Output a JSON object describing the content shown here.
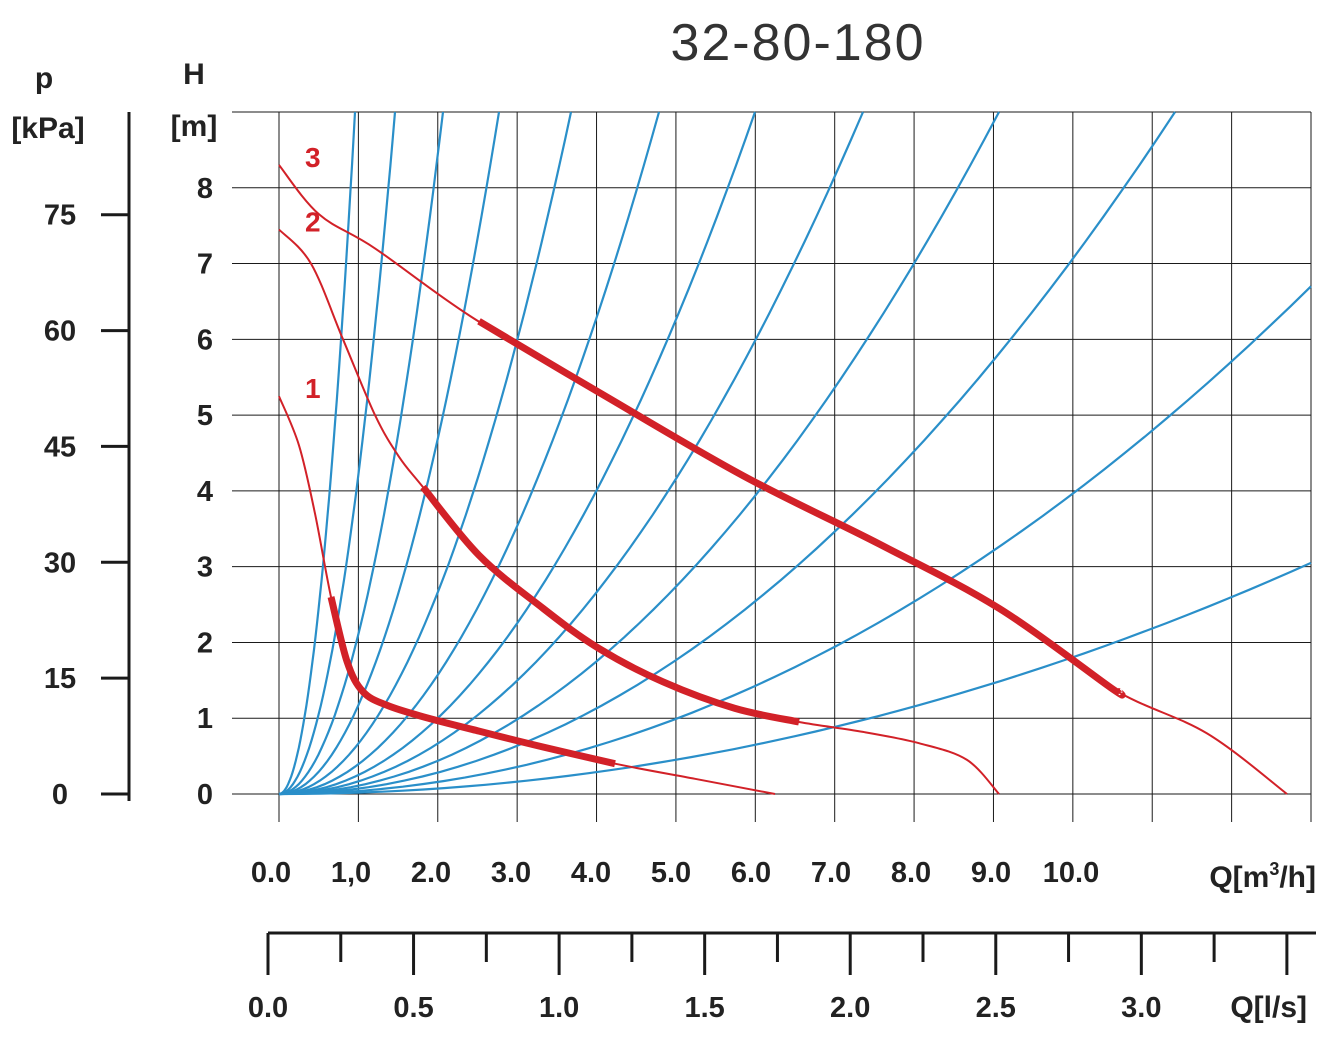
{
  "chart_data": {
    "type": "line",
    "title": "32-80-180",
    "colors": {
      "system_curves": "#2a8fc9",
      "pump_curves": "#d22128",
      "grid": "#1a1a1a",
      "text": "#222222"
    },
    "h_axis": {
      "label_top": "H",
      "label_unit": "[m]",
      "range": [
        0,
        9
      ],
      "ticks": [
        "0",
        "1",
        "2",
        "3",
        "4",
        "5",
        "6",
        "7",
        "8"
      ]
    },
    "p_axis": {
      "label_top": "p",
      "label_unit": "[kPa]",
      "range": [
        0,
        88.3
      ],
      "ticks": [
        "0",
        "15",
        "30",
        "45",
        "60",
        "75"
      ]
    },
    "q_axis": {
      "label": "Q[m³/h]",
      "label_main": "Q[m",
      "label_sup": "3",
      "label_end": "/h]",
      "range": [
        0,
        12.9
      ],
      "ticks": [
        "0.0",
        "1,0",
        "2.0",
        "3.0",
        "4.0",
        "5.0",
        "6.0",
        "7.0",
        "8.0",
        "9.0",
        "10.0"
      ]
    },
    "ql_axis": {
      "label": "Q[l/s]",
      "range": [
        0,
        3.6
      ],
      "ticks": [
        "0.0",
        "0.5",
        "1.0",
        "1.5",
        "2.0",
        "2.5",
        "3.0"
      ]
    },
    "series": [
      {
        "name": "1",
        "points": [
          [
            0,
            5.25
          ],
          [
            0.25,
            4.6
          ],
          [
            0.45,
            3.7
          ],
          [
            0.65,
            2.6
          ],
          [
            0.85,
            1.75
          ],
          [
            1.05,
            1.35
          ],
          [
            1.35,
            1.17
          ],
          [
            1.8,
            1.02
          ],
          [
            2.5,
            0.83
          ],
          [
            3.3,
            0.62
          ],
          [
            4.2,
            0.4
          ],
          [
            5.2,
            0.2
          ],
          [
            6.2,
            0
          ]
        ],
        "operating_range": [
          0.65,
          4.2
        ]
      },
      {
        "name": "2",
        "points": [
          [
            0,
            7.45
          ],
          [
            0.4,
            7.0
          ],
          [
            0.8,
            6.0
          ],
          [
            1.2,
            5.0
          ],
          [
            1.5,
            4.45
          ],
          [
            1.8,
            4.05
          ],
          [
            2.5,
            3.15
          ],
          [
            3.3,
            2.45
          ],
          [
            4.0,
            1.92
          ],
          [
            4.8,
            1.48
          ],
          [
            5.7,
            1.13
          ],
          [
            6.5,
            0.95
          ],
          [
            7.3,
            0.82
          ],
          [
            8.0,
            0.67
          ],
          [
            8.6,
            0.45
          ],
          [
            9.0,
            0
          ]
        ],
        "operating_range": [
          1.8,
          6.5
        ]
      },
      {
        "name": "3",
        "points": [
          [
            0,
            8.3
          ],
          [
            0.5,
            7.65
          ],
          [
            1.2,
            7.2
          ],
          [
            2.4,
            6.3
          ],
          [
            4.0,
            5.3
          ],
          [
            5.8,
            4.2
          ],
          [
            7.5,
            3.3
          ],
          [
            9.0,
            2.45
          ],
          [
            10.4,
            1.4
          ],
          [
            11.6,
            0.8
          ],
          [
            12.6,
            0
          ]
        ],
        "operating_range": [
          2.5,
          10.5
        ]
      }
    ],
    "system_curve_endpoints": [
      [
        0.95,
        9.0
      ],
      [
        1.45,
        9.0
      ],
      [
        2.05,
        9.0
      ],
      [
        2.75,
        9.0
      ],
      [
        3.65,
        9.0
      ],
      [
        4.75,
        9.0
      ],
      [
        5.95,
        9.0
      ],
      [
        7.3,
        9.0
      ],
      [
        9.0,
        9.0
      ],
      [
        11.2,
        9.0
      ],
      [
        12.9,
        6.7
      ],
      [
        12.9,
        3.05
      ]
    ]
  }
}
